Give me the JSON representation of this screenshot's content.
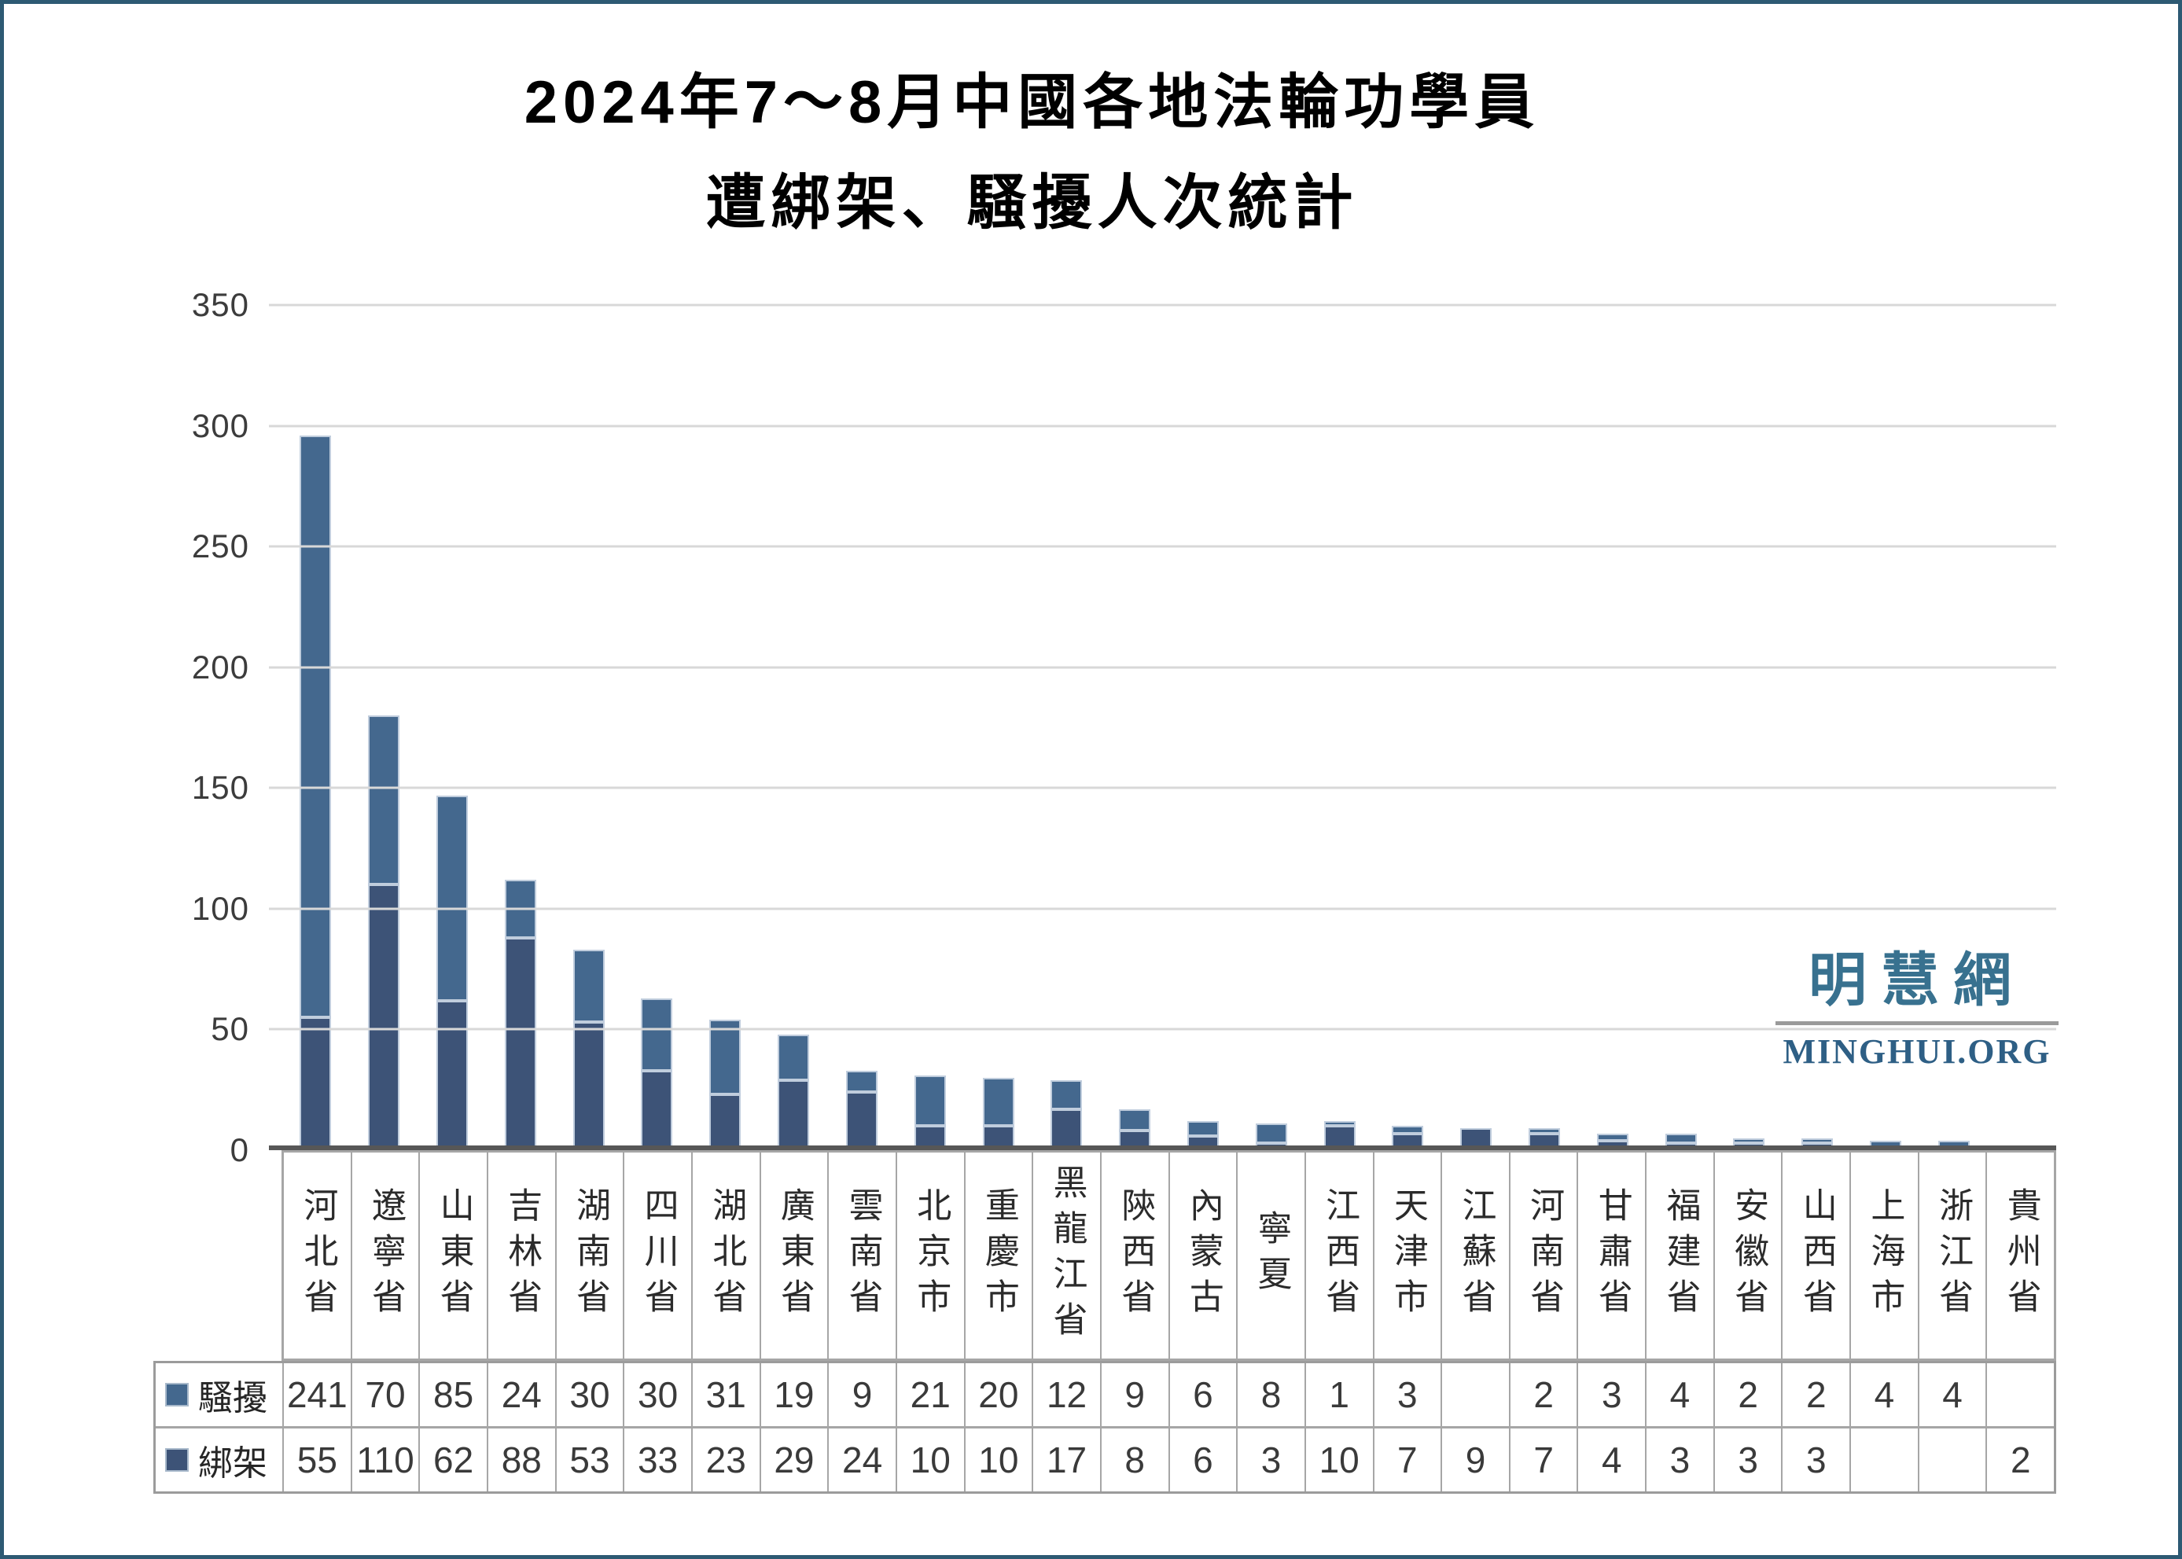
{
  "frame": {
    "border_color": "#2d5a73"
  },
  "title": {
    "line1": "2024年7～8月中國各地法輪功學員",
    "line2": "遭綁架、騷擾人次統計"
  },
  "watermark": {
    "cjk": "明慧網",
    "latin": "MINGHUI.ORG"
  },
  "colors": {
    "harassment_bar": "#44688E",
    "kidnapping_bar": "#3D5377",
    "bar_outline": "#c0cddd",
    "gridline": "#d8d8d8",
    "axis_line": "#575757",
    "table_border": "#a6a6a6"
  },
  "chart_data": {
    "type": "bar",
    "stacked": true,
    "title": "2024年7～8月中國各地法輪功學員遭綁架、騷擾人次統計",
    "xlabel": "",
    "ylabel": "",
    "ylim": [
      0,
      350
    ],
    "ytick_interval": 50,
    "yticks": [
      350,
      300,
      250,
      200,
      150,
      100,
      50,
      0
    ],
    "grid": true,
    "legend_position": "table-left",
    "stack_bottom_series": "綁架",
    "categories": [
      "河北省",
      "遼寧省",
      "山東省",
      "吉林省",
      "湖南省",
      "四川省",
      "湖北省",
      "廣東省",
      "雲南省",
      "北京市",
      "重慶市",
      "黑龍江省",
      "陝西省",
      "內蒙古",
      "寧夏",
      "江西省",
      "天津市",
      "江蘇省",
      "河南省",
      "甘肅省",
      "福建省",
      "安徽省",
      "山西省",
      "上海市",
      "浙江省",
      "貴州省"
    ],
    "series": [
      {
        "name": "騷擾",
        "color": "#44688E",
        "values": [
          241,
          70,
          85,
          24,
          30,
          30,
          31,
          19,
          9,
          21,
          20,
          12,
          9,
          6,
          8,
          1,
          3,
          "",
          2,
          3,
          4,
          2,
          2,
          4,
          4,
          ""
        ]
      },
      {
        "name": "綁架",
        "color": "#3D5377",
        "values": [
          55,
          110,
          62,
          88,
          53,
          33,
          23,
          29,
          24,
          10,
          10,
          17,
          8,
          6,
          3,
          10,
          7,
          9,
          7,
          4,
          3,
          3,
          3,
          "",
          "",
          2
        ]
      }
    ]
  }
}
